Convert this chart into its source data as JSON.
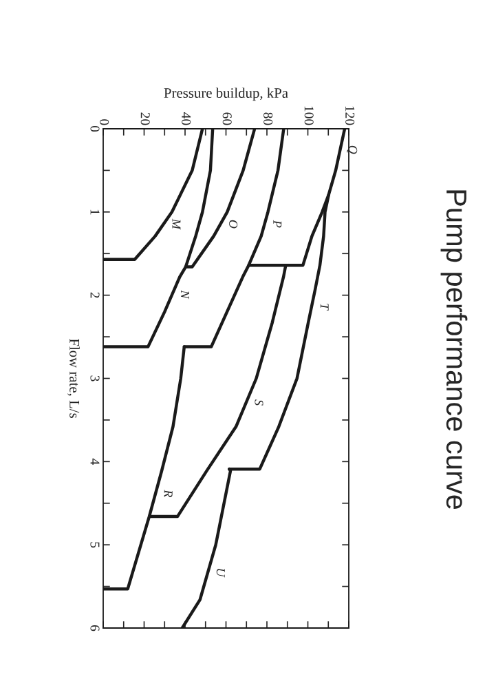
{
  "chart_data": {
    "type": "line",
    "title": "Pump performance curve",
    "xlabel": "Pressure buildup, kPa",
    "ylabel": "Flow rate, L/s",
    "xlim": [
      0,
      120
    ],
    "ylim": [
      6,
      0
    ],
    "xticks": [
      0,
      {
        "value": 10,
        "label": null
      },
      20,
      {
        "value": 30,
        "label": null
      },
      40,
      {
        "value": 50,
        "label": null
      },
      60,
      {
        "value": 70,
        "label": null
      },
      80,
      {
        "value": 90,
        "label": null
      },
      100,
      {
        "value": 110,
        "label": null
      },
      120
    ],
    "yticks": [
      0,
      {
        "value": 0.5,
        "label": null
      },
      1,
      {
        "value": 1.5,
        "label": null
      },
      2,
      {
        "value": 2.5,
        "label": null
      },
      3,
      {
        "value": 3.5,
        "label": null
      },
      4,
      {
        "value": 4.5,
        "label": null
      },
      5,
      {
        "value": 5.5,
        "label": null
      },
      6
    ],
    "grid": false,
    "series": [
      {
        "name": "Q",
        "color": "#1a1a1a",
        "x": [
          118,
          113.6,
          110.2,
          107,
          102,
          97.6,
          71.1
        ],
        "values": [
          0,
          0.5,
          0.79,
          1.0,
          1.29,
          1.64,
          1.64
        ]
      },
      {
        "name": "P",
        "color": "#1a1a1a",
        "x": [
          88.2,
          85.4,
          80.5,
          77.2,
          71.1,
          68.2,
          52.8,
          39.6
        ],
        "values": [
          0,
          0.5,
          1.0,
          1.29,
          1.64,
          1.78,
          2.62,
          2.62
        ]
      },
      {
        "name": "O",
        "color": "#1a1a1a",
        "x": [
          74,
          68.4,
          60.6,
          54,
          43.5,
          40.3
        ],
        "values": [
          0,
          0.5,
          1.0,
          1.29,
          1.66,
          1.66
        ]
      },
      {
        "name": "N",
        "color": "#1a1a1a",
        "x": [
          53.5,
          52.4,
          48.5,
          45.2,
          40.3,
          37.4,
          30,
          21.9,
          0
        ],
        "values": [
          0,
          0.5,
          1.0,
          1.29,
          1.66,
          1.78,
          2.2,
          2.62,
          2.62
        ]
      },
      {
        "name": "M",
        "color": "#1a1a1a",
        "x": [
          48.5,
          43.5,
          33.6,
          25.4,
          15.4,
          0
        ],
        "values": [
          0,
          0.5,
          1.0,
          1.29,
          1.57,
          1.57
        ]
      },
      {
        "name": "T",
        "color": "#1a1a1a",
        "x": [
          110.2,
          108.4,
          107.7,
          105.9,
          103.5,
          100.2,
          94.7,
          85.8,
          76.5,
          61.6
        ],
        "values": [
          0.79,
          1.0,
          1.29,
          1.64,
          1.94,
          2.33,
          3.0,
          3.58,
          4.09,
          4.09
        ]
      },
      {
        "name": "S",
        "color": "#1a1a1a",
        "x": [
          89.2,
          88.1,
          82.6,
          74.8,
          64.9,
          50.6,
          36.3,
          23.1
        ],
        "values": [
          1.64,
          1.78,
          2.33,
          3.0,
          3.58,
          4.11,
          4.66,
          4.66
        ]
      },
      {
        "name": "R",
        "color": "#1a1a1a",
        "x": [
          39.6,
          37.9,
          34.1,
          28.6,
          22.5,
          12,
          0
        ],
        "values": [
          2.62,
          3.0,
          3.58,
          4.11,
          4.66,
          5.53,
          5.53
        ]
      },
      {
        "name": "U",
        "color": "#1a1a1a",
        "x": [
          61.6,
          62.2,
          55,
          47.3,
          38.6
        ],
        "values": [
          4.09,
          4.11,
          5.0,
          5.66,
          6.0
        ]
      }
    ]
  }
}
